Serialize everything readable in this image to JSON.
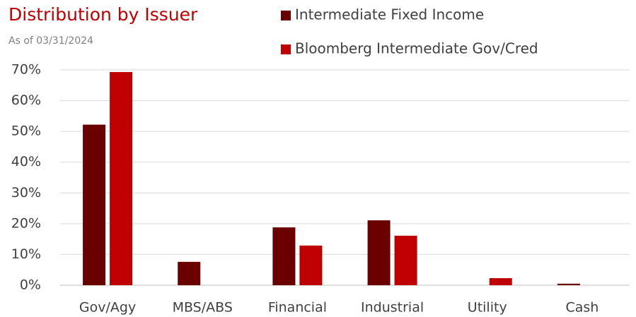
{
  "chart_data": {
    "type": "bar",
    "title": "Distribution by Issuer",
    "subtitle": "As of 03/31/2024",
    "categories": [
      "Gov/Agy",
      "MBS/ABS",
      "Financial",
      "Industrial",
      "Utility",
      "Cash"
    ],
    "series": [
      {
        "name": "Intermediate Fixed Income",
        "color": "#6b0000",
        "values": [
          52.2,
          7.6,
          18.8,
          21.1,
          0,
          0.5
        ]
      },
      {
        "name": "Bloomberg Intermediate Gov/Cred",
        "color": "#c00000",
        "values": [
          69.3,
          0,
          12.9,
          16.1,
          2.3,
          0
        ]
      }
    ],
    "ylim": [
      0,
      70
    ],
    "yticks": [
      {
        "value": 0,
        "label": "0%"
      },
      {
        "value": 10,
        "label": "10%"
      },
      {
        "value": 20,
        "label": "20%"
      },
      {
        "value": 30,
        "label": "30%"
      },
      {
        "value": 40,
        "label": "40%"
      },
      {
        "value": 50,
        "label": "50%"
      },
      {
        "value": 60,
        "label": "60%"
      },
      {
        "value": 70,
        "label": "70%"
      }
    ],
    "grid": true
  }
}
